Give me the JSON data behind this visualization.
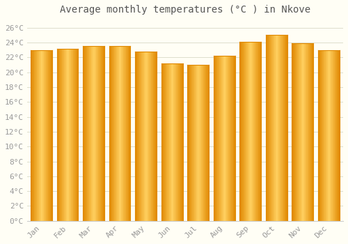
{
  "title": "Average monthly temperatures (°C ) in Nkove",
  "months": [
    "Jan",
    "Feb",
    "Mar",
    "Apr",
    "May",
    "Jun",
    "Jul",
    "Aug",
    "Sep",
    "Oct",
    "Nov",
    "Dec"
  ],
  "values": [
    23.0,
    23.2,
    23.5,
    23.5,
    22.8,
    21.2,
    21.0,
    22.2,
    24.1,
    25.0,
    23.9,
    23.0
  ],
  "bar_color_light": "#FFD060",
  "bar_color_main": "#FFA500",
  "bar_color_dark": "#E08800",
  "ylim": [
    0,
    27
  ],
  "ytick_step": 2,
  "background_color": "#FFFEF5",
  "grid_color": "#DDDDCC",
  "title_fontsize": 10,
  "tick_fontsize": 8,
  "tick_label_color": "#999999",
  "title_color": "#555555"
}
